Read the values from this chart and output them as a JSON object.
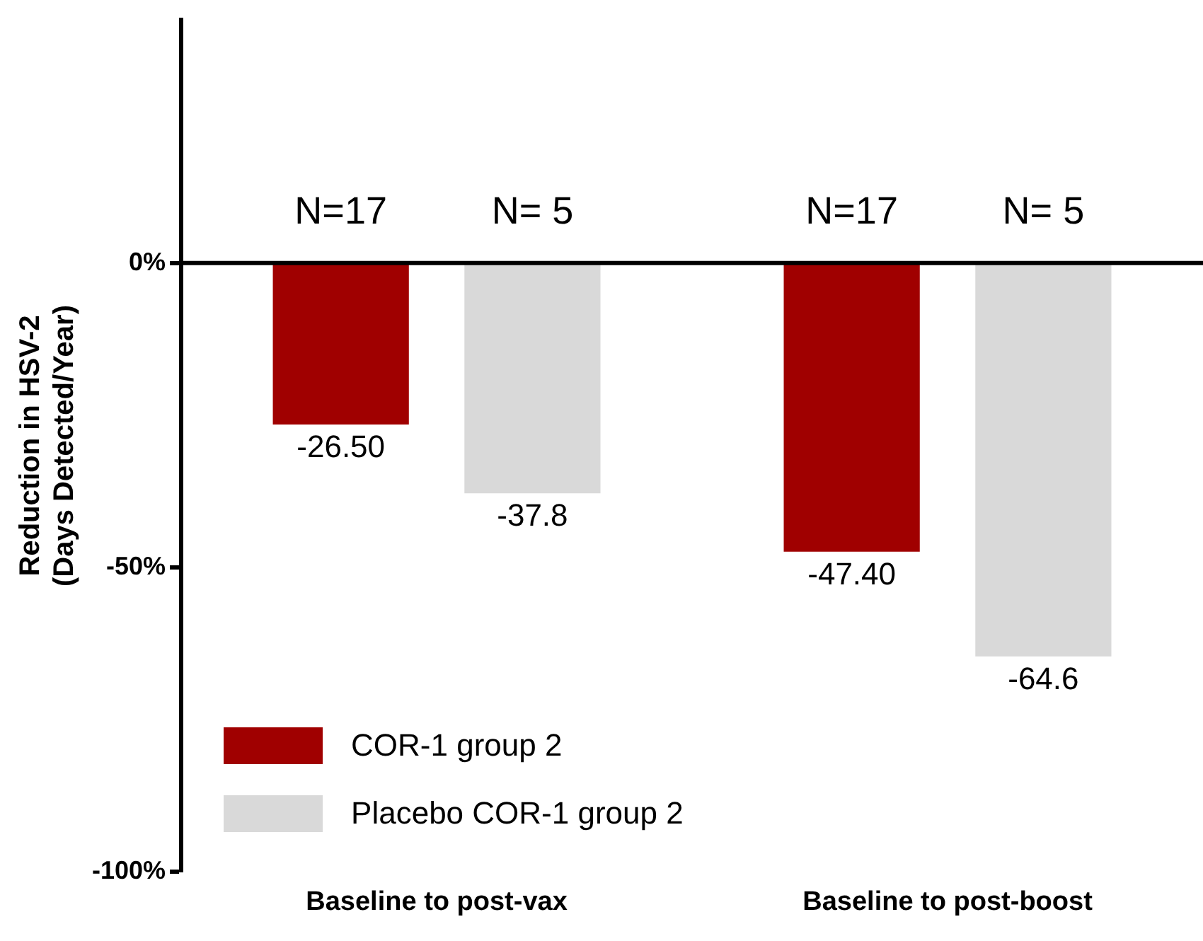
{
  "chart_data": {
    "type": "bar",
    "ylabel": "Reduction in HSV-2\n(Days Detected/Year)",
    "categories": [
      "Baseline to post-vax",
      "Baseline to post-boost"
    ],
    "series": [
      {
        "name": "COR-1 group 2",
        "color": "#a00000",
        "values": [
          -26.5,
          -47.4
        ],
        "value_labels": [
          "-26.50",
          "-47.40"
        ]
      },
      {
        "name": "Placebo COR-1 group 2",
        "color": "#d9d9d9",
        "values": [
          -37.8,
          -64.6
        ],
        "value_labels": [
          "-37.8",
          "-64.6"
        ]
      }
    ],
    "ylim": [
      -100,
      40
    ],
    "yticks": [
      {
        "value": 0,
        "label": "0%"
      },
      {
        "value": -50,
        "label": "-50%"
      },
      {
        "value": -100,
        "label": "-100%"
      }
    ],
    "ref_lines": [
      {
        "axis": "y",
        "value": 0,
        "color": "#000000"
      }
    ],
    "annotations": [
      "N=17",
      "N= 5",
      "N=17",
      "N= 5"
    ],
    "grid": false,
    "legend": "bottom left"
  }
}
